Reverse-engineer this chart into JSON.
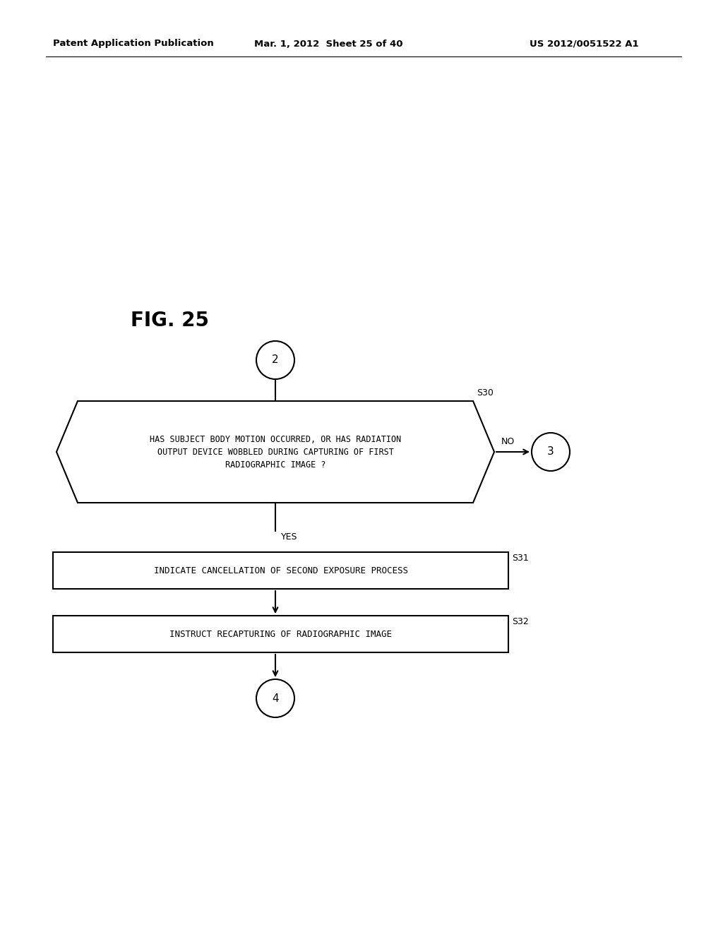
{
  "header_left": "Patent Application Publication",
  "header_mid": "Mar. 1, 2012  Sheet 25 of 40",
  "header_right": "US 2012/0051522 A1",
  "fig_label": "FIG. 25",
  "connector_top": "2",
  "connector_bottom": "4",
  "connector_no": "3",
  "diamond_text_line1": "HAS SUBJECT BODY MOTION OCCURRED, OR HAS RADIATION",
  "diamond_text_line2": "OUTPUT DEVICE WOBBLED DURING CAPTURING OF FIRST",
  "diamond_text_line3": "RADIOGRAPHIC IMAGE ?",
  "diamond_label": "S30",
  "box1_text": "INDICATE CANCELLATION OF SECOND EXPOSURE PROCESS",
  "box1_label": "S31",
  "box2_text": "INSTRUCT RECAPTURING OF RADIOGRAPHIC IMAGE",
  "box2_label": "S32",
  "yes_label": "YES",
  "no_label": "NO",
  "bg_color": "#ffffff",
  "fg_color": "#000000",
  "line_width": 1.5,
  "font_size_header": 9.5,
  "font_size_fig": 20,
  "font_size_box": 9,
  "font_size_label": 9,
  "font_size_connector": 11
}
